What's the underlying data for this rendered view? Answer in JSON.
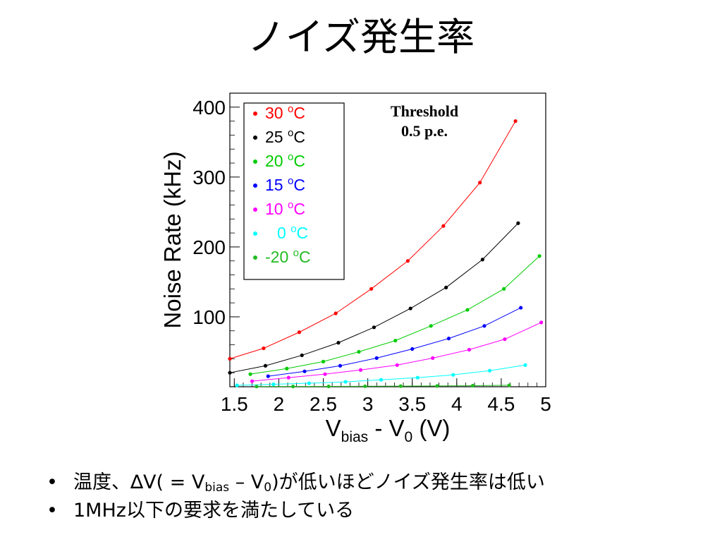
{
  "slide": {
    "title": "ノイズ発生率",
    "bullets": [
      {
        "parts": {
          "p1": "温度、∆V( = V",
          "sub1": "bias",
          "p2": " – V",
          "sub2": "0",
          "p3": ")が低いほどノイズ発生率は低い"
        }
      },
      {
        "text": "1MHz以下の要求を満たしている"
      }
    ]
  },
  "chart_data": {
    "type": "scatter",
    "connected": true,
    "ylabel": "Noise Rate (kHz)",
    "xlabel": {
      "main": "V",
      "sub1": "bias",
      "mid": " - V",
      "sub2": "0",
      "end": " (V)"
    },
    "xlim": [
      1.45,
      5.0
    ],
    "ylim": [
      0,
      420
    ],
    "x_ticks": [
      1.5,
      2,
      2.5,
      3,
      3.5,
      4,
      4.5,
      5
    ],
    "x_tick_labels": [
      "1.5",
      "2",
      "2.5",
      "3",
      "3.5",
      "4",
      "4.5",
      "5"
    ],
    "y_ticks": [
      100,
      200,
      300,
      400
    ],
    "y_tick_labels": [
      "100",
      "200",
      "300",
      "400"
    ],
    "grid": false,
    "legend_position": "top-left",
    "annotation": [
      "Threshold",
      "0.5 p.e."
    ],
    "series": [
      {
        "name": "30 °C",
        "color": "#ff0000",
        "x": [
          1.45,
          1.83,
          2.23,
          2.64,
          3.04,
          3.45,
          3.85,
          4.26,
          4.66
        ],
        "y": [
          40,
          55,
          78,
          105,
          140,
          180,
          230,
          292,
          380
        ]
      },
      {
        "name": "25 °C",
        "color": "#000000",
        "x": [
          1.45,
          1.85,
          2.26,
          2.67,
          3.07,
          3.48,
          3.88,
          4.29,
          4.69
        ],
        "y": [
          20,
          30,
          45,
          63,
          85,
          112,
          142,
          182,
          234
        ]
      },
      {
        "name": "20 °C",
        "color": "#00cc00",
        "x": [
          1.68,
          2.09,
          2.5,
          2.9,
          3.31,
          3.71,
          4.12,
          4.53,
          4.93
        ],
        "y": [
          18,
          26,
          36,
          50,
          66,
          87,
          110,
          140,
          187
        ]
      },
      {
        "name": "15 °C",
        "color": "#0000ff",
        "x": [
          1.88,
          2.29,
          2.69,
          3.1,
          3.5,
          3.91,
          4.31,
          4.72
        ],
        "y": [
          15,
          22,
          30,
          41,
          54,
          69,
          87,
          113
        ]
      },
      {
        "name": "10 °C",
        "color": "#ff00ff",
        "x": [
          1.7,
          2.11,
          2.52,
          2.92,
          3.33,
          3.73,
          4.14,
          4.54,
          4.95
        ],
        "y": [
          8,
          13,
          18,
          24,
          31,
          41,
          53,
          68,
          92
        ]
      },
      {
        "name": "0 °C",
        "color": "#00ffff",
        "x": [
          1.53,
          1.94,
          2.34,
          2.75,
          3.15,
          3.56,
          3.96,
          4.37,
          4.77
        ],
        "y": [
          2,
          3.5,
          5,
          7,
          10,
          13,
          17,
          23,
          31
        ]
      },
      {
        "name": "-20 °C",
        "color": "#22bb22",
        "x": [
          1.75,
          2.16,
          2.56,
          2.97,
          3.37,
          3.78,
          4.18,
          4.59
        ],
        "y": [
          0.3,
          0.4,
          0.5,
          0.7,
          0.9,
          1.1,
          1.5,
          2.1
        ]
      }
    ],
    "legend": [
      {
        "temp": "30",
        "indent": false,
        "color": "#ff0000"
      },
      {
        "temp": "25",
        "indent": false,
        "color": "#000000"
      },
      {
        "temp": "20",
        "indent": false,
        "color": "#00cc00"
      },
      {
        "temp": "15",
        "indent": false,
        "color": "#0000ff"
      },
      {
        "temp": "10",
        "indent": false,
        "color": "#ff00ff"
      },
      {
        "temp": "0",
        "indent": true,
        "color": "#00ffff"
      },
      {
        "temp": "-20",
        "indent": false,
        "color": "#22bb22"
      }
    ],
    "legend_unit_sup": "o",
    "legend_unit": "C"
  }
}
